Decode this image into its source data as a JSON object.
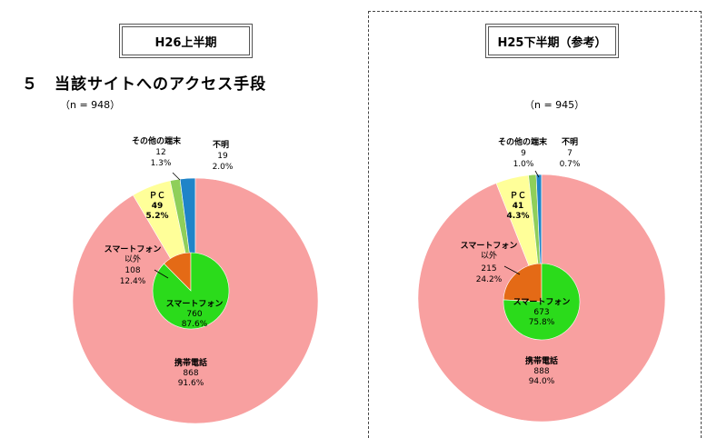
{
  "section_title": "５　当該サイトへのアクセス手段",
  "chart_data": [
    {
      "type": "pie",
      "period": "H26上半期",
      "n_label": "（n = 948）",
      "slices": [
        {
          "name": "携帯電話",
          "count": "868",
          "pct": "91.6%",
          "value": 91.6,
          "color": "#f8a0a0"
        },
        {
          "name": "ＰＣ",
          "count": "49",
          "pct": "5.2%",
          "value": 5.2,
          "color": "#ffff99"
        },
        {
          "name": "その他の端末",
          "count": "12",
          "pct": "1.3%",
          "value": 1.3,
          "color": "#8fcf5a"
        },
        {
          "name": "不明",
          "count": "19",
          "pct": "2.0%",
          "value": 2.0,
          "color": "#1f84c8"
        }
      ],
      "inner": [
        {
          "name": "スマートフォン",
          "count": "760",
          "pct": "87.6%",
          "value": 87.6,
          "color": "#2bdb1b"
        },
        {
          "name": "スマートフォン以外",
          "name_line1": "スマートフォン",
          "name_line2": "以外",
          "count": "108",
          "pct": "12.4%",
          "value": 12.4,
          "color": "#e46a16"
        }
      ]
    },
    {
      "type": "pie",
      "period": "H25下半期（参考）",
      "n_label": "（n = 945）",
      "slices": [
        {
          "name": "携帯電話",
          "count": "888",
          "pct": "94.0%",
          "value": 94.0,
          "color": "#f8a0a0"
        },
        {
          "name": "ＰＣ",
          "count": "41",
          "pct": "4.3%",
          "value": 4.3,
          "color": "#ffff99"
        },
        {
          "name": "その他の端末",
          "count": "9",
          "pct": "1.0%",
          "value": 1.0,
          "color": "#8fcf5a"
        },
        {
          "name": "不明",
          "count": "7",
          "pct": "0.7%",
          "value": 0.7,
          "color": "#1f84c8"
        }
      ],
      "inner": [
        {
          "name": "スマートフォン",
          "count": "673",
          "pct": "75.8%",
          "value": 75.8,
          "color": "#2bdb1b"
        },
        {
          "name": "スマートフォン以外",
          "name_line1": "スマートフォン",
          "name_line2": "以外",
          "count": "215",
          "pct": "24.2%",
          "value": 24.2,
          "color": "#e46a16"
        }
      ]
    }
  ]
}
